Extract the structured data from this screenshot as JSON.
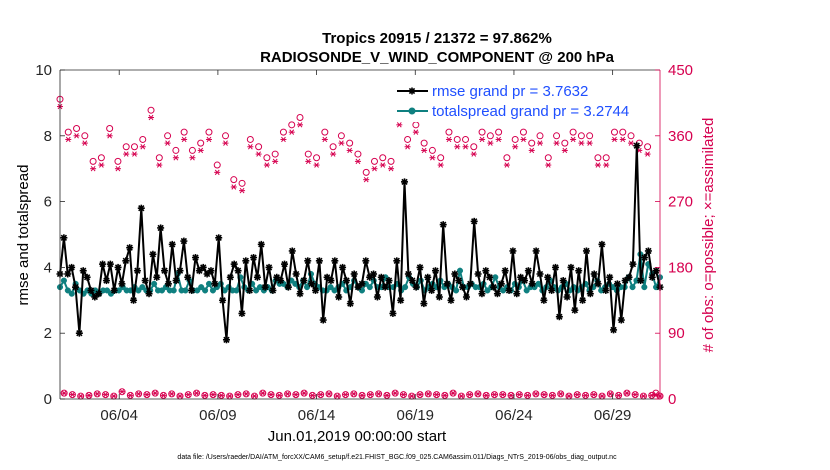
{
  "chart_data": {
    "type": "line",
    "title": "Tropics 20915 / 21372 = 97.862%",
    "subtitle": "RADIOSONDE_V_WIND_COMPONENT @ 200 hPa",
    "xlabel": "Jun.01,2019 00:00:00 start",
    "ylabel": "rmse and totalspread",
    "ylabel_right": "# of obs: o=possible; ×=assimilated",
    "footnote": "data file: /Users/raeder/DAI/ATM_forcXX/CAM6_setup/f.e21.FHIST_BGC.f09_025.CAM6assim.011/Diags_NTrS_2019-06/obs_diag_output.nc",
    "x_range": [
      1,
      31.4
    ],
    "ylim": [
      0,
      10
    ],
    "ylim_right": [
      0,
      450
    ],
    "x_ticks": [
      {
        "value": 4,
        "label": "06/04"
      },
      {
        "value": 9,
        "label": "06/09"
      },
      {
        "value": 14,
        "label": "06/14"
      },
      {
        "value": 19,
        "label": "06/19"
      },
      {
        "value": 24,
        "label": "06/24"
      },
      {
        "value": 29,
        "label": "06/29"
      }
    ],
    "y_ticks": [
      "0",
      "2",
      "4",
      "6",
      "8",
      "10"
    ],
    "y_ticks_right": [
      "0",
      "90",
      "180",
      "270",
      "360",
      "450"
    ],
    "legend": {
      "position": "top-right",
      "entries": [
        "rmse grand pr = 3.7632",
        "totalspread grand pr = 3.2744"
      ]
    },
    "colors": {
      "rmse": "#000000",
      "totalspread": "#0f8080",
      "obs": "#d6004f",
      "legend_text": "#1f4fff",
      "right_axis": "#d6004f"
    },
    "series": [
      {
        "name": "rmse",
        "label": "rmse grand pr = 3.7632",
        "values": [
          3.8,
          4.9,
          3.8,
          4.0,
          3.4,
          2.0,
          3.9,
          3.7,
          3.3,
          3.1,
          3.2,
          4.1,
          3.6,
          4.1,
          3.3,
          4.0,
          3.5,
          4.2,
          4.6,
          3.0,
          3.9,
          5.8,
          3.6,
          3.2,
          4.4,
          3.7,
          5.2,
          3.9,
          3.5,
          4.7,
          3.6,
          3.9,
          4.8,
          3.7,
          3.3,
          4.3,
          3.9,
          4.0,
          3.8,
          3.9,
          3.5,
          4.9,
          3.0,
          1.8,
          3.7,
          4.1,
          3.9,
          2.6,
          4.2,
          3.3,
          4.3,
          3.7,
          4.7,
          3.4,
          4.0,
          3.3,
          3.7,
          3.6,
          4.1,
          3.4,
          4.5,
          3.8,
          3.2,
          3.6,
          4.2,
          3.5,
          3.3,
          4.2,
          2.4,
          3.7,
          3.6,
          4.2,
          3.1,
          4.0,
          3.6,
          2.9,
          3.8,
          3.4,
          3.5,
          4.2,
          3.7,
          3.8,
          3.1,
          3.7,
          3.4,
          3.6,
          2.6,
          4.2,
          3.0,
          6.6,
          3.8,
          3.6,
          3.4,
          4.0,
          2.9,
          3.7,
          3.3,
          3.9,
          3.1,
          5.3,
          3.5,
          3.0,
          3.8,
          3.6,
          3.4,
          3.1,
          3.5,
          5.4,
          3.8,
          3.2,
          3.9,
          3.7,
          3.4,
          3.2,
          3.5,
          3.9,
          3.3,
          4.5,
          3.2,
          3.7,
          3.6,
          3.9,
          3.5,
          4.5,
          3.8,
          3.0,
          3.7,
          3.3,
          4.0,
          2.5,
          3.6,
          3.1,
          4.0,
          2.7,
          3.9,
          3.0,
          4.5,
          3.2,
          3.8,
          3.5,
          4.7,
          3.3,
          3.7,
          2.1,
          3.5,
          2.4,
          3.6,
          3.7,
          4.1,
          7.7,
          3.6,
          4.3,
          4.5,
          3.7,
          3.9,
          3.4
        ]
      },
      {
        "name": "totalspread",
        "label": "totalspread grand pr = 3.2744",
        "values": [
          3.4,
          3.6,
          3.3,
          3.2,
          3.5,
          3.3,
          3.2,
          3.3,
          3.2,
          3.3,
          3.2,
          3.3,
          3.3,
          3.2,
          3.3,
          3.3,
          3.4,
          3.3,
          3.3,
          3.4,
          3.3,
          3.4,
          3.3,
          3.3,
          3.5,
          3.3,
          3.3,
          3.4,
          3.3,
          3.3,
          3.8,
          3.3,
          3.3,
          3.6,
          3.3,
          3.3,
          3.4,
          3.3,
          3.5,
          3.3,
          3.4,
          3.5,
          3.3,
          3.4,
          3.3,
          3.3,
          3.7,
          3.4,
          3.3,
          3.5,
          3.3,
          3.4,
          3.3,
          3.4,
          3.3,
          3.6,
          3.5,
          3.5,
          3.4,
          3.6,
          3.5,
          3.4,
          3.6,
          3.4,
          3.8,
          3.5,
          3.4,
          3.3,
          3.3,
          3.4,
          3.3,
          3.4,
          3.5,
          3.3,
          3.4,
          3.6,
          3.4,
          3.3,
          3.5,
          3.4,
          3.6,
          3.4,
          3.4,
          3.7,
          3.4,
          3.4,
          3.5,
          3.3,
          3.4,
          3.7,
          3.5,
          3.4,
          3.6,
          3.3,
          3.4,
          3.5,
          3.4,
          3.6,
          3.4,
          3.5,
          3.4,
          3.3,
          3.9,
          3.4,
          3.4,
          3.5,
          3.4,
          3.4,
          3.5,
          3.3,
          3.4,
          3.7,
          3.4,
          3.3,
          3.4,
          3.3,
          3.5,
          3.4,
          3.6,
          3.3,
          3.4,
          3.4,
          3.5,
          3.3,
          3.4,
          3.6,
          3.4,
          3.3,
          3.4,
          3.5,
          3.3,
          3.4,
          3.3,
          3.4,
          3.5,
          3.3,
          3.4,
          3.6,
          3.3,
          3.4,
          3.5,
          3.4,
          3.3,
          3.4,
          3.4,
          3.7,
          3.4,
          3.6,
          4.4,
          3.4,
          4.1,
          3.8,
          3.4,
          3.7
        ]
      },
      {
        "name": "obs_possible",
        "label": "possible",
        "marker": "circle",
        "values": [
          410,
          8,
          365,
          6,
          370,
          4,
          360,
          5,
          325,
          7,
          330,
          6,
          370,
          4,
          325,
          10,
          345,
          5,
          345,
          7,
          355,
          6,
          395,
          8,
          330,
          5,
          360,
          7,
          340,
          4,
          365,
          6,
          340,
          8,
          350,
          5,
          365,
          6,
          320,
          5,
          360,
          4,
          300,
          6,
          295,
          7,
          355,
          4,
          345,
          8,
          330,
          6,
          335,
          5,
          365,
          7,
          375,
          6,
          385,
          8,
          335,
          5,
          330,
          6,
          365,
          7,
          345,
          4,
          360,
          6,
          350,
          7,
          335,
          5,
          310,
          6,
          325,
          7,
          330,
          5,
          325,
          8,
          385,
          6,
          355,
          4,
          375,
          6,
          350,
          7,
          340,
          6,
          330,
          5,
          365,
          8,
          355,
          4,
          355,
          6,
          345,
          7,
          365,
          5,
          360,
          6,
          365,
          6,
          330,
          5,
          355,
          6,
          365,
          5,
          350,
          7,
          360,
          6,
          330,
          5,
          360,
          7,
          350,
          4,
          365,
          6,
          360,
          5,
          360,
          6,
          330,
          4,
          330,
          7,
          365,
          5,
          365,
          8,
          360,
          6,
          350,
          4,
          345,
          5,
          8,
          4
        ]
      },
      {
        "name": "obs_assimilated",
        "label": "assimilated",
        "marker": "asterisk",
        "values": [
          400,
          8,
          355,
          6,
          360,
          4,
          350,
          5,
          315,
          7,
          320,
          6,
          360,
          4,
          315,
          10,
          335,
          5,
          335,
          7,
          345,
          6,
          385,
          8,
          320,
          5,
          350,
          7,
          330,
          4,
          355,
          6,
          330,
          8,
          340,
          5,
          355,
          6,
          310,
          5,
          350,
          4,
          290,
          6,
          285,
          7,
          345,
          4,
          335,
          8,
          320,
          6,
          325,
          5,
          355,
          7,
          365,
          6,
          375,
          8,
          325,
          5,
          320,
          6,
          355,
          7,
          335,
          4,
          350,
          6,
          340,
          7,
          325,
          5,
          300,
          6,
          315,
          7,
          320,
          5,
          315,
          8,
          375,
          6,
          345,
          4,
          365,
          6,
          340,
          7,
          330,
          6,
          320,
          5,
          355,
          8,
          345,
          4,
          345,
          6,
          335,
          7,
          355,
          5,
          350,
          6,
          355,
          6,
          320,
          5,
          345,
          6,
          355,
          5,
          340,
          7,
          350,
          6,
          320,
          5,
          350,
          7,
          340,
          4,
          355,
          6,
          350,
          5,
          350,
          6,
          320,
          4,
          320,
          7,
          355,
          5,
          355,
          8,
          350,
          6,
          340,
          4,
          335,
          5,
          6,
          4
        ]
      }
    ]
  }
}
